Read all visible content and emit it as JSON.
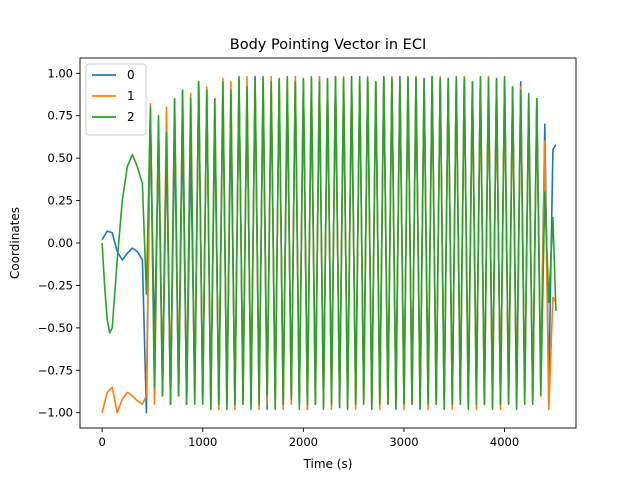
{
  "chart_data": {
    "type": "line",
    "title": "Body Pointing Vector in ECI",
    "xlabel": "Time (s)",
    "ylabel": "Coordinates",
    "xlim": [
      -220,
      4710
    ],
    "ylim": [
      -1.09,
      1.09
    ],
    "xticks": [
      0,
      1000,
      2000,
      3000,
      4000
    ],
    "xtick_labels": [
      "0",
      "1000",
      "2000",
      "3000",
      "4000"
    ],
    "yticks": [
      -1.0,
      -0.75,
      -0.5,
      -0.25,
      0.0,
      0.25,
      0.5,
      0.75,
      1.0
    ],
    "ytick_labels": [
      "−1.00",
      "−0.75",
      "−0.50",
      "−0.25",
      "0.00",
      "0.25",
      "0.50",
      "0.75",
      "1.00"
    ],
    "grid": false,
    "legend_position": "top-left",
    "series": [
      {
        "name": "0",
        "color": "#1f77b4",
        "x": [
          0,
          50,
          100,
          150,
          200,
          250,
          300,
          350,
          400,
          440,
          480,
          520,
          560,
          600,
          640,
          680,
          720,
          760,
          800,
          840,
          880,
          920,
          960,
          1000,
          1040,
          1080,
          1120,
          1160,
          1200,
          1240,
          1280,
          1320,
          1360,
          1400,
          1440,
          1480,
          1520,
          1560,
          1600,
          1640,
          1680,
          1720,
          1760,
          1800,
          1840,
          1880,
          1920,
          1960,
          2000,
          2040,
          2080,
          2120,
          2160,
          2200,
          2240,
          2280,
          2320,
          2360,
          2400,
          2440,
          2480,
          2520,
          2560,
          2600,
          2640,
          2680,
          2720,
          2760,
          2800,
          2840,
          2880,
          2920,
          2960,
          3000,
          3040,
          3080,
          3120,
          3160,
          3200,
          3240,
          3280,
          3320,
          3360,
          3400,
          3440,
          3480,
          3520,
          3560,
          3600,
          3640,
          3680,
          3720,
          3760,
          3800,
          3840,
          3880,
          3920,
          3960,
          4000,
          4040,
          4080,
          4120,
          4160,
          4200,
          4240,
          4280,
          4320,
          4360,
          4400,
          4440,
          4480,
          4510
        ],
        "y": [
          0.02,
          0.07,
          0.06,
          -0.05,
          -0.1,
          -0.06,
          -0.03,
          -0.05,
          -0.1,
          -1.0,
          0.75,
          -0.6,
          0.6,
          -0.9,
          0.6,
          -0.95,
          0.65,
          -0.9,
          0.7,
          -0.95,
          0.55,
          -0.85,
          0.95,
          -0.9,
          0.9,
          -0.95,
          0.7,
          -0.95,
          0.9,
          -0.95,
          0.75,
          -0.95,
          0.95,
          -0.85,
          0.85,
          -0.95,
          0.98,
          -0.9,
          0.92,
          -0.98,
          0.9,
          -0.9,
          0.95,
          -0.95,
          0.85,
          -0.9,
          0.98,
          -0.95,
          0.95,
          -0.98,
          0.9,
          -0.95,
          0.98,
          -0.95,
          0.95,
          -0.9,
          0.98,
          -0.97,
          0.93,
          -0.95,
          0.98,
          -0.95,
          0.95,
          -0.9,
          0.98,
          -0.95,
          0.95,
          -0.92,
          0.98,
          -0.95,
          0.95,
          -0.9,
          0.98,
          -0.95,
          0.97,
          -0.93,
          0.98,
          -0.95,
          0.97,
          -0.9,
          0.98,
          -0.95,
          0.96,
          -0.92,
          0.97,
          -0.95,
          0.96,
          -0.9,
          0.98,
          -0.95,
          0.95,
          -0.9,
          0.97,
          -0.95,
          0.95,
          -0.9,
          0.97,
          -0.95,
          0.95,
          -0.93,
          0.92,
          -0.9,
          0.95,
          -0.85,
          0.8,
          -0.9,
          0.85,
          -0.8,
          0.7,
          -0.85,
          0.55,
          0.58
        ]
      },
      {
        "name": "1",
        "color": "#ff7f0e",
        "x": [
          0,
          50,
          100,
          150,
          200,
          250,
          300,
          350,
          400,
          440,
          480,
          520,
          560,
          600,
          640,
          680,
          720,
          760,
          800,
          840,
          880,
          920,
          960,
          1000,
          1040,
          1080,
          1120,
          1160,
          1200,
          1240,
          1280,
          1320,
          1360,
          1400,
          1440,
          1480,
          1520,
          1560,
          1600,
          1640,
          1680,
          1720,
          1760,
          1800,
          1840,
          1880,
          1920,
          1960,
          2000,
          2040,
          2080,
          2120,
          2160,
          2200,
          2240,
          2280,
          2320,
          2360,
          2400,
          2440,
          2480,
          2520,
          2560,
          2600,
          2640,
          2680,
          2720,
          2760,
          2800,
          2840,
          2880,
          2920,
          2960,
          3000,
          3040,
          3080,
          3120,
          3160,
          3200,
          3240,
          3280,
          3320,
          3360,
          3400,
          3440,
          3480,
          3520,
          3560,
          3600,
          3640,
          3680,
          3720,
          3760,
          3800,
          3840,
          3880,
          3920,
          3960,
          4000,
          4040,
          4080,
          4120,
          4160,
          4200,
          4240,
          4280,
          4320,
          4360,
          4400,
          4440,
          4480,
          4510
        ],
        "y": [
          -1.0,
          -0.88,
          -0.85,
          -1.0,
          -0.92,
          -0.88,
          -0.9,
          -0.93,
          -0.95,
          -0.9,
          0.82,
          -0.95,
          0.7,
          -0.85,
          0.8,
          -0.95,
          0.85,
          -0.9,
          0.9,
          -0.95,
          0.88,
          -0.9,
          0.95,
          -0.95,
          0.92,
          -0.95,
          0.85,
          -0.98,
          0.97,
          -0.95,
          0.95,
          -0.98,
          0.97,
          -0.95,
          0.98,
          -0.9,
          0.95,
          -0.98,
          0.97,
          -0.95,
          0.98,
          -0.97,
          0.95,
          -0.98,
          0.97,
          -0.95,
          0.98,
          -0.93,
          0.95,
          -0.98,
          0.97,
          -0.95,
          0.98,
          -0.97,
          0.95,
          -0.98,
          0.97,
          -0.95,
          0.98,
          -0.97,
          0.95,
          -0.98,
          0.97,
          -0.95,
          0.98,
          -0.97,
          0.95,
          -0.98,
          0.97,
          -0.95,
          0.98,
          -0.97,
          0.95,
          -0.98,
          0.97,
          -0.95,
          0.98,
          -0.97,
          0.95,
          -0.98,
          0.97,
          -0.95,
          0.98,
          -0.97,
          0.95,
          -0.98,
          0.97,
          -0.95,
          0.98,
          -0.97,
          0.95,
          -0.98,
          0.97,
          -0.95,
          0.98,
          -0.97,
          0.95,
          -0.98,
          0.97,
          -0.95,
          0.9,
          -0.97,
          0.92,
          -0.9,
          0.85,
          -0.95,
          0.8,
          -0.85,
          0.6,
          -0.98,
          -0.32,
          -0.35
        ]
      },
      {
        "name": "2",
        "color": "#2ca02c",
        "x": [
          0,
          25,
          50,
          75,
          100,
          150,
          200,
          250,
          300,
          350,
          400,
          440,
          480,
          520,
          560,
          600,
          640,
          680,
          720,
          760,
          800,
          840,
          880,
          920,
          960,
          1000,
          1040,
          1080,
          1120,
          1160,
          1200,
          1240,
          1280,
          1320,
          1360,
          1400,
          1440,
          1480,
          1520,
          1560,
          1600,
          1640,
          1680,
          1720,
          1760,
          1800,
          1840,
          1880,
          1920,
          1960,
          2000,
          2040,
          2080,
          2120,
          2160,
          2200,
          2240,
          2280,
          2320,
          2360,
          2400,
          2440,
          2480,
          2520,
          2560,
          2600,
          2640,
          2680,
          2720,
          2760,
          2800,
          2840,
          2880,
          2920,
          2960,
          3000,
          3040,
          3080,
          3120,
          3160,
          3200,
          3240,
          3280,
          3320,
          3360,
          3400,
          3440,
          3480,
          3520,
          3560,
          3600,
          3640,
          3680,
          3720,
          3760,
          3800,
          3840,
          3880,
          3920,
          3960,
          4000,
          4040,
          4080,
          4120,
          4160,
          4200,
          4240,
          4280,
          4320,
          4360,
          4400,
          4440,
          4480,
          4510
        ],
        "y": [
          0.0,
          -0.25,
          -0.45,
          -0.53,
          -0.5,
          -0.1,
          0.25,
          0.45,
          0.52,
          0.45,
          0.35,
          -0.3,
          0.8,
          -0.85,
          0.75,
          -0.9,
          0.65,
          -0.95,
          0.85,
          -0.9,
          0.9,
          -0.95,
          0.85,
          -0.95,
          0.95,
          -0.95,
          0.9,
          -0.98,
          0.85,
          -0.95,
          0.95,
          -0.98,
          0.9,
          -0.95,
          0.98,
          -0.95,
          0.92,
          -0.98,
          0.95,
          -0.95,
          0.98,
          -0.9,
          0.95,
          -0.98,
          0.97,
          -0.95,
          0.98,
          -0.92,
          0.95,
          -0.98,
          0.97,
          -0.95,
          0.98,
          -0.95,
          0.95,
          -0.98,
          0.97,
          -0.95,
          0.98,
          -0.95,
          0.97,
          -0.98,
          0.95,
          -0.95,
          0.98,
          -0.95,
          0.97,
          -0.98,
          0.95,
          -0.95,
          0.98,
          -0.95,
          0.97,
          -0.98,
          0.95,
          -0.95,
          0.98,
          -0.95,
          0.97,
          -0.98,
          0.95,
          -0.95,
          0.98,
          -0.95,
          0.97,
          -0.98,
          0.95,
          -0.95,
          0.98,
          -0.95,
          0.97,
          -0.98,
          0.95,
          -0.95,
          0.98,
          -0.95,
          0.97,
          -0.98,
          0.95,
          -0.95,
          0.98,
          -0.95,
          0.92,
          -0.98,
          0.9,
          -0.95,
          0.88,
          -0.95,
          0.85,
          -0.9,
          0.3,
          -0.35,
          0.15,
          -0.4
        ]
      }
    ]
  }
}
